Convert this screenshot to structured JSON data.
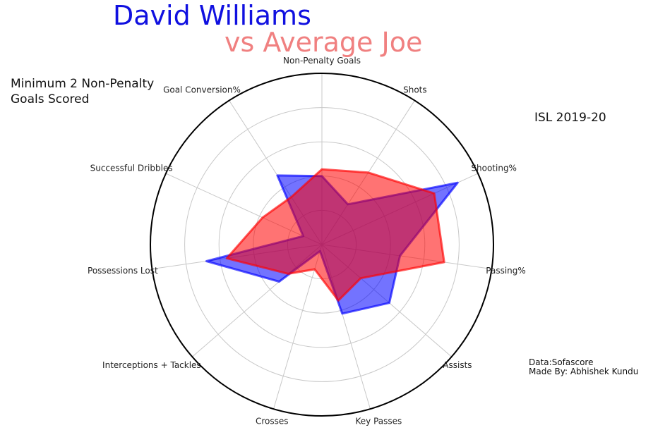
{
  "header": {
    "title": "David Williams",
    "subtitle": "vs Average Joe",
    "note": [
      "Minimum 2 Non-Penalty",
      "Goals Scored"
    ],
    "season": "ISL 2019-20",
    "credits": [
      "Data:Sofascore",
      "Made By: Abhishek Kundu"
    ]
  },
  "chart_data": {
    "type": "radar",
    "categories": [
      "Non-Penalty Goals",
      "Shots",
      "Shooting%",
      "Passing%",
      "Assists",
      "Key Passes",
      "Crosses",
      "Interceptions + Tackles",
      "Possessions Lost",
      "Successful Dribbles",
      "Goal Conversion%"
    ],
    "rings": 5,
    "range": [
      0,
      1
    ],
    "grid": true,
    "series": [
      {
        "name": "David Williams",
        "color": "#0000ff",
        "values": [
          0.4,
          0.28,
          0.87,
          0.46,
          0.52,
          0.42,
          0.04,
          0.33,
          0.68,
          0.12,
          0.48
        ]
      },
      {
        "name": "Average Joe",
        "color": "#ff0000",
        "values": [
          0.44,
          0.5,
          0.72,
          0.72,
          0.3,
          0.34,
          0.15,
          0.26,
          0.56,
          0.38,
          0.33
        ]
      }
    ]
  }
}
